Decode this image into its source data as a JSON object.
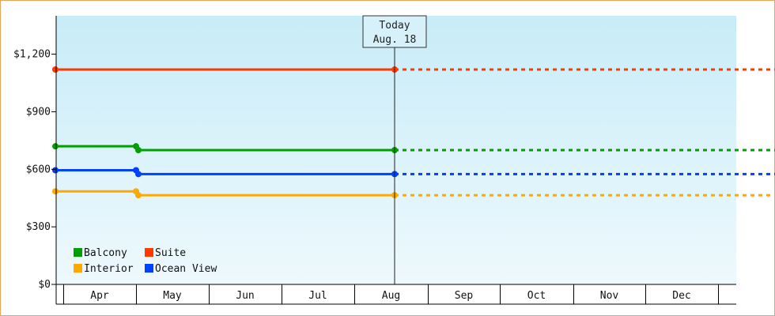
{
  "chart_data": {
    "type": "line",
    "x_axis": {
      "categories": [
        "Apr",
        "May",
        "Jun",
        "Jul",
        "Aug",
        "Sep",
        "Oct",
        "Nov",
        "Dec"
      ]
    },
    "y_axis": {
      "ylim": [
        0,
        1400
      ],
      "ticks": [
        0,
        300,
        600,
        900,
        1200
      ],
      "tick_labels": [
        "$0",
        "$300",
        "$600",
        "$900",
        "$1,200"
      ]
    },
    "today_marker": {
      "line1": "Today",
      "line2": "Aug. 18",
      "date": "Aug. 18"
    },
    "series": [
      {
        "name": "Suite",
        "color": "#ff3a00",
        "points": [
          {
            "date": "Apr 1",
            "value": 1120
          },
          {
            "date": "Aug 18",
            "value": 1120
          }
        ],
        "projected_to": "Dec 31"
      },
      {
        "name": "Balcony",
        "color": "#00a000",
        "points": [
          {
            "date": "Apr 1",
            "value": 720
          },
          {
            "date": "May 1",
            "value": 720
          },
          {
            "date": "May 2",
            "value": 700
          },
          {
            "date": "Aug 18",
            "value": 700
          }
        ],
        "projected_to": "Dec 31"
      },
      {
        "name": "Ocean View",
        "color": "#0040ff",
        "points": [
          {
            "date": "Apr 1",
            "value": 595
          },
          {
            "date": "May 1",
            "value": 595
          },
          {
            "date": "May 2",
            "value": 575
          },
          {
            "date": "Aug 18",
            "value": 575
          }
        ],
        "projected_to": "Dec 31"
      },
      {
        "name": "Interior",
        "color": "#ffa800",
        "points": [
          {
            "date": "Apr 1",
            "value": 485
          },
          {
            "date": "May 1",
            "value": 485
          },
          {
            "date": "May 2",
            "value": 465
          },
          {
            "date": "Aug 18",
            "value": 465
          }
        ],
        "projected_to": "Dec 31"
      }
    ],
    "legend": {
      "placement": "bottom-left",
      "rows": [
        [
          {
            "name": "Balcony",
            "color": "#00a000"
          },
          {
            "name": "Suite",
            "color": "#ff3a00"
          }
        ],
        [
          {
            "name": "Interior",
            "color": "#ffa800"
          },
          {
            "name": "Ocean View",
            "color": "#0040ff"
          }
        ]
      ]
    },
    "grid": false,
    "background": {
      "top": "#c8ecf8",
      "bottom": "#eef9fd"
    }
  }
}
